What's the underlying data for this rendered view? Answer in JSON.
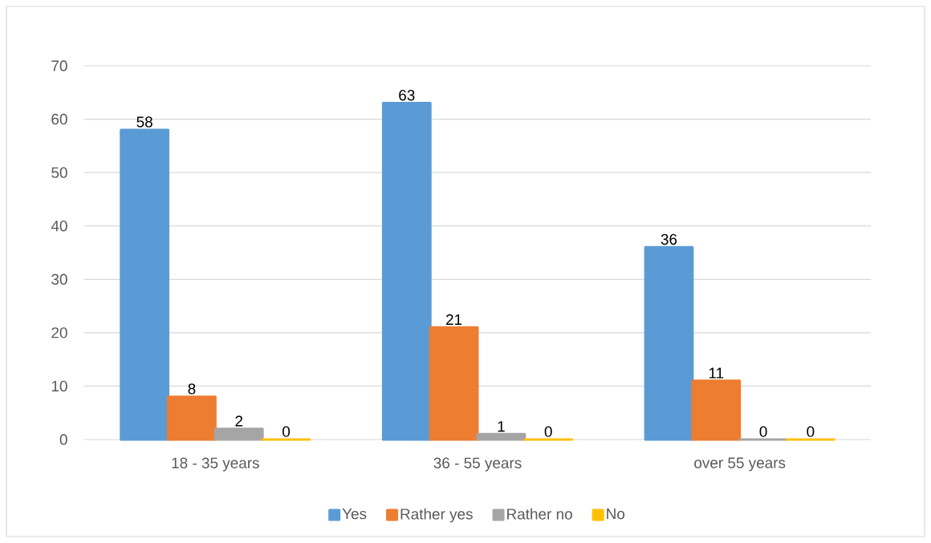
{
  "chart_data": {
    "type": "bar",
    "categories": [
      "18 - 35 years",
      "36 - 55 years",
      "over 55 years"
    ],
    "series": [
      {
        "name": "Yes",
        "color": "#5b9bd5",
        "values": [
          58,
          63,
          36
        ]
      },
      {
        "name": "Rather yes",
        "color": "#ed7d31",
        "values": [
          8,
          21,
          11
        ]
      },
      {
        "name": "Rather no",
        "color": "#a5a5a5",
        "values": [
          2,
          1,
          0
        ]
      },
      {
        "name": "No",
        "color": "#ffc000",
        "values": [
          0,
          0,
          0
        ]
      }
    ],
    "ylim": [
      0,
      70
    ],
    "yticks": [
      0,
      10,
      20,
      30,
      40,
      50,
      60,
      70
    ],
    "grid": "y",
    "legend": "bottom",
    "data_labels": true
  }
}
